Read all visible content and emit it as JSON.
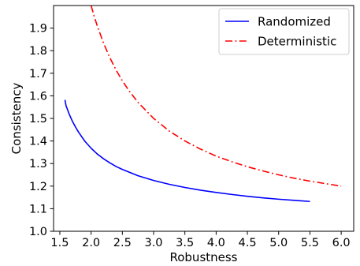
{
  "chart_data": {
    "type": "line",
    "title": "",
    "xlabel": "Robustness",
    "ylabel": "Consistency",
    "xlim": [
      1.4,
      6.2
    ],
    "ylim": [
      1.0,
      2.0
    ],
    "xticks": [
      1.5,
      2.0,
      2.5,
      3.0,
      3.5,
      4.0,
      4.5,
      5.0,
      5.5,
      6.0
    ],
    "xtick_labels": [
      "1.5",
      "2.0",
      "2.5",
      "3.0",
      "3.5",
      "4.0",
      "4.5",
      "5.0",
      "5.5",
      "6.0"
    ],
    "yticks": [
      1.0,
      1.1,
      1.2,
      1.3,
      1.4,
      1.5,
      1.6,
      1.7,
      1.8,
      1.9
    ],
    "ytick_labels": [
      "1.0",
      "1.1",
      "1.2",
      "1.3",
      "1.4",
      "1.5",
      "1.6",
      "1.7",
      "1.8",
      "1.9"
    ],
    "grid": false,
    "legend_position": "top-right",
    "series": [
      {
        "name": "Randomized",
        "color": "#0000ff",
        "line_style": "solid",
        "x": [
          1.582,
          1.6,
          1.65,
          1.7,
          1.75,
          1.8,
          1.9,
          2.0,
          2.1,
          2.2,
          2.3,
          2.4,
          2.5,
          2.75,
          3.0,
          3.25,
          3.5,
          3.75,
          4.0,
          4.25,
          4.5,
          4.75,
          5.0,
          5.25,
          5.5
        ],
        "y": [
          1.582,
          1.556,
          1.519,
          1.488,
          1.462,
          1.439,
          1.399,
          1.368,
          1.342,
          1.321,
          1.303,
          1.287,
          1.274,
          1.246,
          1.225,
          1.208,
          1.194,
          1.182,
          1.172,
          1.163,
          1.155,
          1.148,
          1.142,
          1.137,
          1.132
        ]
      },
      {
        "name": "Deterministic",
        "color": "#ff0000",
        "line_style": "dashdot",
        "x": [
          2.0,
          2.05,
          2.1,
          2.2,
          2.3,
          2.4,
          2.5,
          2.6,
          2.75,
          3.0,
          3.25,
          3.5,
          3.75,
          4.0,
          4.25,
          4.5,
          4.75,
          5.0,
          5.25,
          5.5,
          5.75,
          6.0
        ],
        "y": [
          2.0,
          1.952,
          1.909,
          1.833,
          1.769,
          1.714,
          1.667,
          1.625,
          1.571,
          1.5,
          1.444,
          1.4,
          1.364,
          1.333,
          1.308,
          1.286,
          1.267,
          1.25,
          1.235,
          1.222,
          1.211,
          1.2
        ]
      }
    ]
  }
}
